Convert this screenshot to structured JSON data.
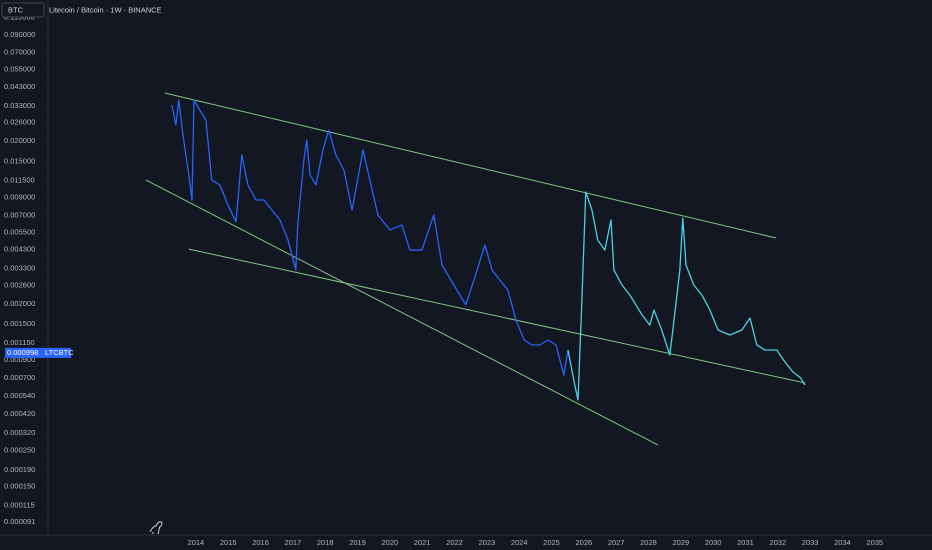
{
  "chart_data": {
    "type": "line",
    "title": "Litecoin / Bitcoin · 1W · BINANCE",
    "symbol_search": "BTC",
    "symbol": "LTCBTC",
    "last_value": 0.000998,
    "log_scale": true,
    "grid": false,
    "xlim": [
      2007.94,
      2036.77
    ],
    "xticks": [
      2014,
      2015,
      2016,
      2017,
      2018,
      2019,
      2020,
      2021,
      2022,
      2023,
      2024,
      2025,
      2026,
      2027,
      2028,
      2029,
      2030,
      2031,
      2032,
      2033,
      2034,
      2035
    ],
    "ylim": [
      7.57e-05,
      0.1477
    ],
    "yticks": [
      {
        "value": 0.115,
        "label": "0.115000"
      },
      {
        "value": 0.09,
        "label": "0.090000"
      },
      {
        "value": 0.07,
        "label": "0.070000"
      },
      {
        "value": 0.055,
        "label": "0.055000"
      },
      {
        "value": 0.043,
        "label": "0.043000"
      },
      {
        "value": 0.033,
        "label": "0.033000"
      },
      {
        "value": 0.026,
        "label": "0.026000"
      },
      {
        "value": 0.02,
        "label": "0.020000"
      },
      {
        "value": 0.015,
        "label": "0.015000"
      },
      {
        "value": 0.0115,
        "label": "0.011500"
      },
      {
        "value": 0.009,
        "label": "0.009000"
      },
      {
        "value": 0.007,
        "label": "0.007000"
      },
      {
        "value": 0.0055,
        "label": "0.005500"
      },
      {
        "value": 0.0043,
        "label": "0.004300"
      },
      {
        "value": 0.0033,
        "label": "0.003300"
      },
      {
        "value": 0.0026,
        "label": "0.002600"
      },
      {
        "value": 0.002,
        "label": "0.002000"
      },
      {
        "value": 0.0015,
        "label": "0.001500"
      },
      {
        "value": 0.00115,
        "label": "0.001150"
      },
      {
        "value": 0.0009,
        "label": "0.000900"
      },
      {
        "value": 0.0007,
        "label": "0.000700"
      },
      {
        "value": 0.00054,
        "label": "0.000540"
      },
      {
        "value": 0.00042,
        "label": "0.000420"
      },
      {
        "value": 0.00032,
        "label": "0.000320"
      },
      {
        "value": 0.00025,
        "label": "0.000250"
      },
      {
        "value": 0.00019,
        "label": "0.000190"
      },
      {
        "value": 0.00015,
        "label": "0.000150"
      },
      {
        "value": 0.000115,
        "label": "0.000115"
      },
      {
        "value": 9.1e-05,
        "label": "0.000091"
      }
    ],
    "series": [
      {
        "color": "#2962ff",
        "x": [
          2013.26,
          2013.38,
          2013.47,
          2013.6,
          2013.78,
          2013.88,
          2013.94,
          2014.12,
          2014.31,
          2014.49,
          2014.74,
          2014.99,
          2015.24,
          2015.42,
          2015.61,
          2015.86,
          2016.1,
          2016.35,
          2016.6,
          2016.85,
          2017.09,
          2017.15,
          2017.34,
          2017.43,
          2017.53,
          2017.71,
          2017.93,
          2018.11,
          2018.33,
          2018.58,
          2018.83,
          2019.17,
          2019.38,
          2019.63,
          2020.0,
          2020.37,
          2020.62,
          2020.99,
          2021.36,
          2021.61,
          2021.98,
          2022.35,
          2022.6,
          2022.94,
          2023.16,
          2023.4,
          2023.65,
          2023.9,
          2024.15,
          2024.39,
          2024.64,
          2024.89,
          2025.14,
          2025.38,
          2025.51
        ],
        "values": [
          0.0334,
          0.0252,
          0.0358,
          0.0218,
          0.0124,
          0.0087,
          0.0358,
          0.0311,
          0.027,
          0.01155,
          0.01076,
          0.00811,
          0.00637,
          0.01645,
          0.01076,
          0.0087,
          0.0087,
          0.00755,
          0.00655,
          0.00494,
          0.00323,
          0.00611,
          0.01533,
          0.0203,
          0.0124,
          0.01076,
          0.01766,
          0.0234,
          0.01645,
          0.0133,
          0.00755,
          0.01766,
          0.01155,
          0.00703,
          0.00569,
          0.00611,
          0.00428,
          0.00428,
          0.00703,
          0.00347,
          0.00261,
          0.00197,
          0.0028,
          0.0046,
          0.00323,
          0.0028,
          0.00243,
          0.00159,
          0.0012,
          0.001116,
          0.001116,
          0.0012,
          0.001116,
          0.00073,
          0.00104
        ]
      },
      {
        "color": "#4dd0e1",
        "x": [
          2025.51,
          2025.72,
          2025.82,
          2025.94,
          2026.06,
          2026.25,
          2026.43,
          2026.65,
          2026.84,
          2026.93,
          2027.18,
          2027.42,
          2027.8,
          2028.04,
          2028.17,
          2028.41,
          2028.66,
          2028.79,
          2028.97,
          2029.06,
          2029.16,
          2029.4,
          2029.65,
          2029.9,
          2030.15,
          2030.52,
          2030.89,
          2031.14,
          2031.35,
          2031.6,
          2031.97,
          2032.22,
          2032.47,
          2032.71,
          2032.84
        ],
        "values": [
          0.00104,
          0.000633,
          0.000512,
          0.00211,
          0.00974,
          0.00755,
          0.00494,
          0.00428,
          0.00655,
          0.00323,
          0.00261,
          0.00227,
          0.00171,
          0.00148,
          0.00183,
          0.00138,
          0.000969,
          0.00159,
          0.00323,
          0.00674,
          0.00347,
          0.00261,
          0.00227,
          0.00183,
          0.00138,
          0.001286,
          0.00138,
          0.001636,
          0.001116,
          0.00104,
          0.00104,
          0.000877,
          0.000761,
          0.000699,
          0.000633
        ]
      }
    ],
    "trendlines": [
      {
        "color": "#81c784",
        "x": [
          2013.04,
          2031.94
        ],
        "values": [
          0.0396,
          0.00508
        ]
      },
      {
        "color": "#81c784",
        "x": [
          2012.45,
          2028.29
        ],
        "values": [
          0.01155,
          0.000271
        ]
      },
      {
        "color": "#81c784",
        "x": [
          2013.78,
          2032.84
        ],
        "values": [
          0.00434,
          0.000652
        ]
      }
    ]
  }
}
